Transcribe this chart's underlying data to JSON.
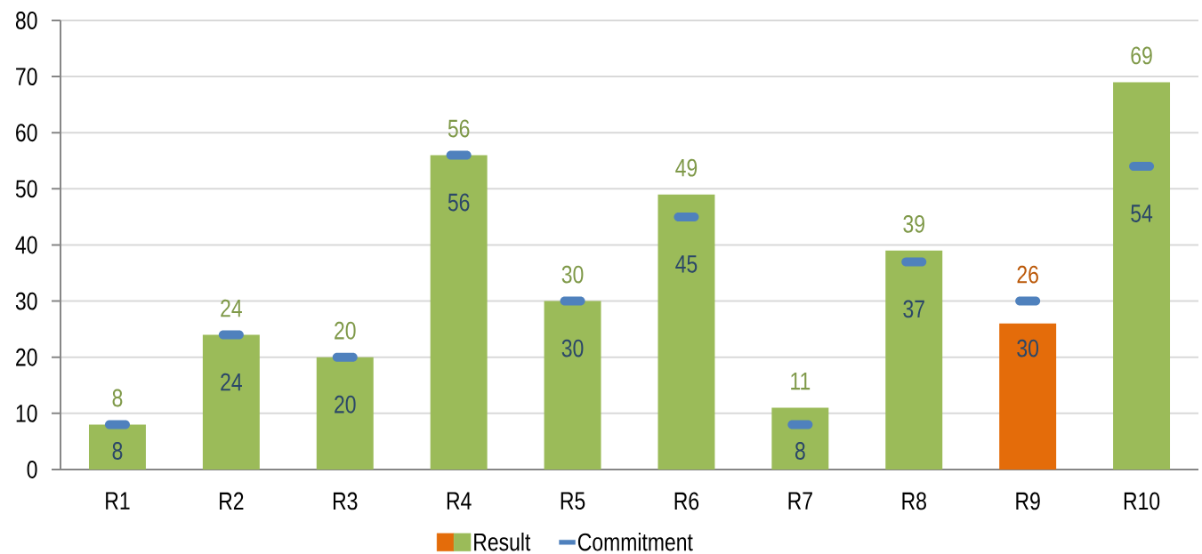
{
  "chart_data": {
    "type": "bar",
    "categories": [
      "R1",
      "R2",
      "R3",
      "R4",
      "R5",
      "R6",
      "R7",
      "R8",
      "R9",
      "R10"
    ],
    "series": [
      {
        "name": "Result",
        "colors": [
          "#9BBB59",
          "#9BBB59",
          "#9BBB59",
          "#9BBB59",
          "#9BBB59",
          "#9BBB59",
          "#9BBB59",
          "#9BBB59",
          "#E46C0A",
          "#9BBB59"
        ],
        "values": [
          8,
          24,
          20,
          56,
          30,
          49,
          11,
          39,
          26,
          69
        ]
      },
      {
        "name": "Commitment",
        "type": "scatter",
        "color": "#4F81BD",
        "values": [
          8,
          24,
          20,
          56,
          30,
          45,
          8,
          37,
          30,
          54
        ]
      }
    ],
    "ylim": [
      0,
      80
    ],
    "yticks": [
      0,
      10,
      20,
      30,
      40,
      50,
      60,
      70,
      80
    ],
    "grid": "y",
    "legend": "bottom",
    "data_labels": true
  }
}
